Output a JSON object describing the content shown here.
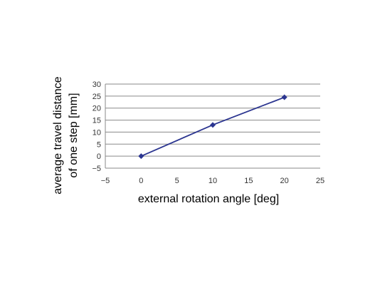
{
  "chart_data": {
    "type": "line",
    "title": "",
    "xlabel": "external rotation angle [deg]",
    "ylabel_lines": [
      "average travel distance",
      "of one step [mm]"
    ],
    "xlim": [
      -5,
      25
    ],
    "ylim": [
      -5,
      30
    ],
    "xticks": [
      -5,
      0,
      5,
      10,
      15,
      20,
      25
    ],
    "yticks": [
      -5,
      0,
      5,
      10,
      15,
      20,
      25,
      30
    ],
    "grid": "horizontal",
    "series": [
      {
        "color": "#2b3590",
        "marker": "diamond",
        "points": [
          {
            "x": 0,
            "y": 0
          },
          {
            "x": 10,
            "y": 13
          },
          {
            "x": 20,
            "y": 24.5
          }
        ]
      }
    ]
  }
}
